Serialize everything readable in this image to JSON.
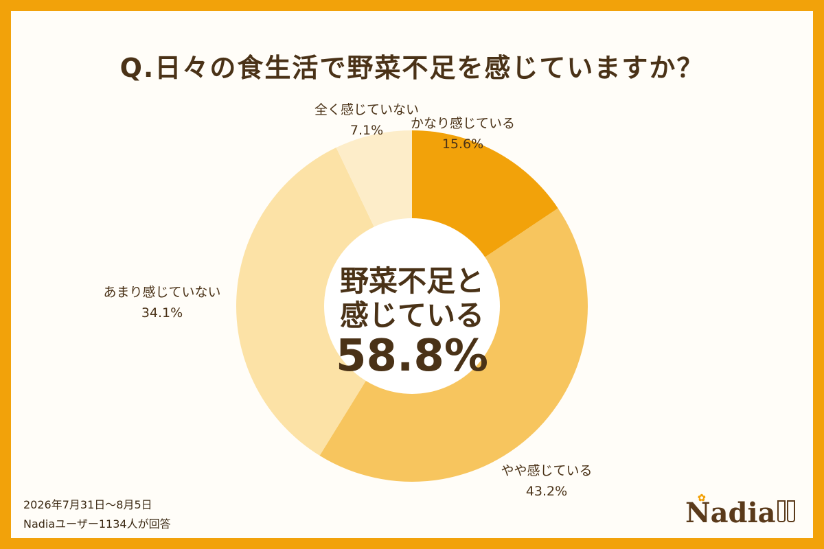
{
  "title": "Q.日々の食生活で野菜不足を感じていますか？",
  "chart_data": {
    "type": "pie",
    "categories": [
      "かなり感じている",
      "やや感じている",
      "あまり感じていない",
      "全く感じていない"
    ],
    "values": [
      15.6,
      43.2,
      34.1,
      7.1
    ],
    "value_labels": [
      "15.6%",
      "43.2%",
      "34.1%",
      "7.1%"
    ],
    "colors": [
      "#F2A20A",
      "#F7C55E",
      "#FCE2A6",
      "#FDEDC9"
    ],
    "donut": true,
    "legend": "none"
  },
  "center": {
    "line1": "野菜不足と",
    "line2": "感じている",
    "value": "58.8%"
  },
  "footer": {
    "date_range": "2026年7月31日～8月5日",
    "respondents": "Nadiaユーザー1134人が回答"
  },
  "logo": {
    "text": "Nadia"
  },
  "colors": {
    "frame": "#F2A20A",
    "text": "#4A3217",
    "background": "#FFFDF8"
  }
}
